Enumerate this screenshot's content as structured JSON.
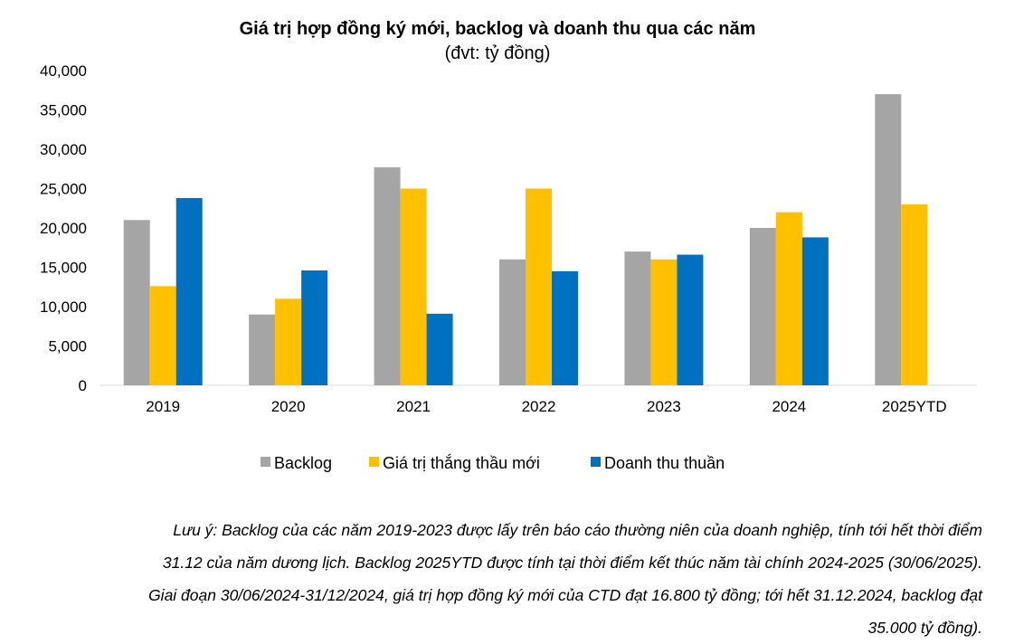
{
  "chart_data": {
    "type": "bar",
    "title": "Giá trị hợp đồng ký mới, backlog và doanh thu qua các năm",
    "subtitle": "(đvt: tỷ đồng)",
    "categories": [
      "2019",
      "2020",
      "2021",
      "2022",
      "2023",
      "2024",
      "2025YTD"
    ],
    "series": [
      {
        "name": "Backlog",
        "color": "#A5A5A5",
        "values": [
          21000,
          9000,
          27700,
          16000,
          17000,
          20000,
          37000
        ]
      },
      {
        "name": "Giá trị thắng thầu mới",
        "color": "#FFC000",
        "values": [
          12600,
          11000,
          25000,
          25000,
          16000,
          22000,
          23000
        ]
      },
      {
        "name": "Doanh thu thuần",
        "color": "#0070C0",
        "values": [
          23800,
          14600,
          9100,
          14500,
          16600,
          18800,
          null
        ]
      }
    ],
    "yticks": [
      "0",
      "5,000",
      "10,000",
      "15,000",
      "20,000",
      "25,000",
      "30,000",
      "35,000",
      "40,000"
    ],
    "ylim": [
      0,
      40000
    ],
    "grid": false,
    "legend": "bottom"
  },
  "note": {
    "lines": [
      "Lưu ý: Backlog của các năm 2019-2023 được lấy trên báo cáo thường niên của doanh nghiệp, tính tới hết thời điểm",
      "31.12 của năm dương lịch. Backlog 2025YTD được tính tại thời điểm kết thúc năm tài chính 2024-2025 (30/06/2025).",
      "Giai đoạn 30/06/2024-31/12/2024, giá trị hợp đồng ký mới của CTD đạt 16.800 tỷ đồng; tới hết 31.12.2024, backlog đạt",
      "35.000 tỷ đồng)."
    ]
  }
}
